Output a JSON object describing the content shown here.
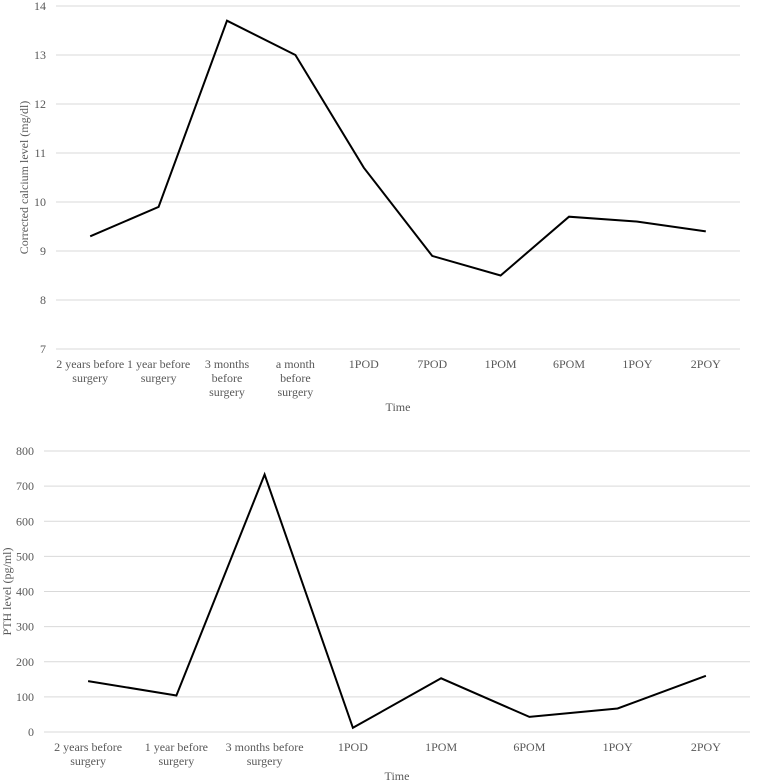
{
  "chart_data": [
    {
      "type": "line",
      "title": "",
      "xlabel": "Time",
      "ylabel": "Corrected calcium level (mg/dl)",
      "ylim": [
        7,
        14
      ],
      "ystep": 1,
      "grid": true,
      "categories": [
        [
          "2 years before",
          "surgery"
        ],
        [
          "1 year before",
          "surgery"
        ],
        [
          "3 months",
          "before",
          "surgery"
        ],
        [
          "a month",
          "before",
          "surgery"
        ],
        [
          "1POD"
        ],
        [
          "7POD"
        ],
        [
          "1POM"
        ],
        [
          "6POM"
        ],
        [
          "1POY"
        ],
        [
          "2POY"
        ]
      ],
      "series": [
        {
          "name": "Corrected calcium",
          "color": "#000000",
          "values": [
            9.3,
            9.9,
            13.7,
            13.0,
            10.7,
            8.9,
            8.5,
            9.7,
            9.6,
            9.4
          ]
        }
      ]
    },
    {
      "type": "line",
      "title": "",
      "xlabel": "Time",
      "ylabel": "PTH level (pg/ml)",
      "ylim": [
        0,
        800
      ],
      "ystep": 100,
      "grid": true,
      "categories": [
        [
          "2 years before",
          "surgery"
        ],
        [
          "1  year before",
          "surgery"
        ],
        [
          "3 months before",
          "surgery"
        ],
        [
          "1POD"
        ],
        [
          "1POM"
        ],
        [
          "6POM"
        ],
        [
          "1POY"
        ],
        [
          "2POY"
        ]
      ],
      "series": [
        {
          "name": "PTH",
          "color": "#000000",
          "values": [
            145,
            104,
            733,
            12,
            153,
            43,
            67,
            160
          ]
        }
      ]
    }
  ]
}
